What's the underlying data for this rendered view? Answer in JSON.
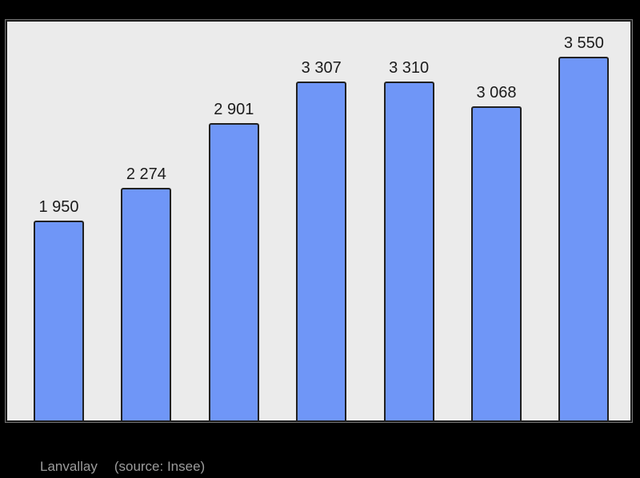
{
  "chart_data": {
    "type": "bar",
    "values": [
      1950,
      2274,
      2901,
      3307,
      3310,
      3068,
      3550
    ],
    "bar_labels": [
      "1 950",
      "2 274",
      "2 901",
      "3 307",
      "3 310",
      "3 068",
      "3 550"
    ],
    "title": "",
    "xlabel": "",
    "ylabel": "",
    "ylim": [
      0,
      3900
    ],
    "axes_visible": false,
    "grid": false,
    "legend": null,
    "caption": "Lanvallay",
    "source": "(source: Insee)",
    "colors": {
      "bar_fill": "#6F96F7",
      "bar_border": "#202020",
      "plot_background": "#EBEBEB",
      "frame_border": "#1C1C1C",
      "page_background": "#000000",
      "value_label": "#1B1B1B",
      "caption_text": "#9C9C9C"
    }
  }
}
